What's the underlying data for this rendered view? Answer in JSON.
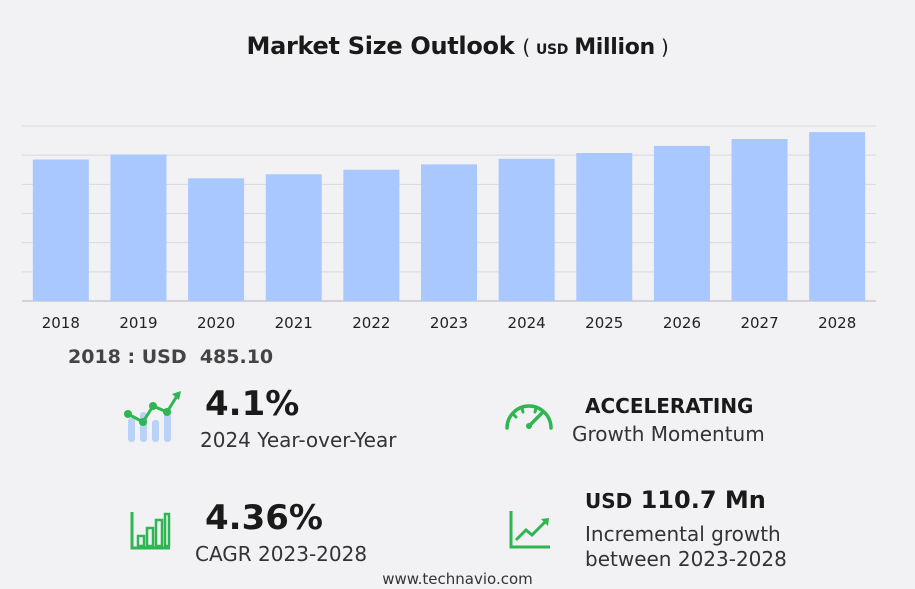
{
  "chart_data": {
    "type": "bar",
    "title": "Market Size Outlook",
    "unit_prefix": "USD",
    "unit_suffix": "Million",
    "categories": [
      "2018",
      "2019",
      "2020",
      "2021",
      "2022",
      "2023",
      "2024",
      "2025",
      "2026",
      "2027",
      "2028"
    ],
    "values": [
      485.1,
      502.4,
      420.7,
      434.5,
      450.3,
      468.4,
      487.6,
      507.4,
      531.8,
      555.4,
      579.1
    ],
    "ylim": [
      0,
      600
    ],
    "grid": true,
    "bar_color": "#a9c8ff"
  },
  "base_year": {
    "label": "2018 : USD",
    "value": "485.10"
  },
  "kpis": {
    "yoy": {
      "value": "4.1%",
      "label": "2024 Year-over-Year"
    },
    "momentum": {
      "value": "ACCELERATING",
      "label": "Growth Momentum"
    },
    "cagr": {
      "value": "4.36%",
      "label": "CAGR 2023-2028"
    },
    "incremental": {
      "unit": "USD",
      "value": "110.7 Mn",
      "label_line1": "Incremental growth",
      "label_line2": "between 2023-2028"
    }
  },
  "footer": "www.technavio.com",
  "colors": {
    "accent": "#2fb552",
    "bar": "#a9c8ff",
    "grid": "#d9d9de",
    "icon_bars": "#b9d2f7"
  },
  "icons": [
    "growth-chart-icon",
    "speedometer-icon",
    "bar-chart-icon",
    "trend-line-icon"
  ]
}
